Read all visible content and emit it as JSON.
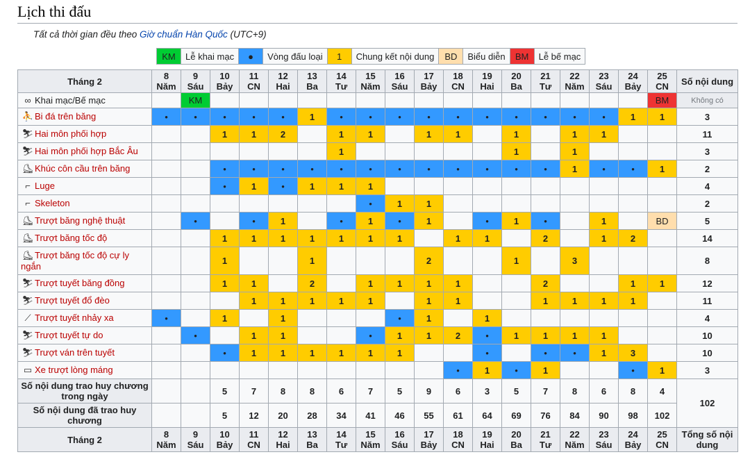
{
  "title": "Lịch thi đấu",
  "note": {
    "prefix": "Tất cả thời gian đều theo ",
    "link": "Giờ chuẩn Hàn Quốc",
    "suffix": " (UTC+9)"
  },
  "legend": [
    {
      "code": "KM",
      "label": "Lễ khai mạc",
      "color": "#00cc33"
    },
    {
      "code": "●",
      "label": "Vòng đấu loại",
      "color": "#3399ff"
    },
    {
      "code": "1",
      "label": "Chung kết nội dung",
      "color": "#ffcc00"
    },
    {
      "code": "BD",
      "label": "Biểu diễn",
      "color": "#ffdead"
    },
    {
      "code": "BM",
      "label": "Lễ bế mạc",
      "color": "#ee3333"
    }
  ],
  "header": {
    "month": "Tháng 2",
    "total": "Số nội dung",
    "footer_total": "Tổng số nội dung"
  },
  "days": [
    {
      "d": "8",
      "w": "Năm"
    },
    {
      "d": "9",
      "w": "Sáu"
    },
    {
      "d": "10",
      "w": "Bảy"
    },
    {
      "d": "11",
      "w": "CN"
    },
    {
      "d": "12",
      "w": "Hai"
    },
    {
      "d": "13",
      "w": "Ba"
    },
    {
      "d": "14",
      "w": "Tư"
    },
    {
      "d": "15",
      "w": "Năm"
    },
    {
      "d": "16",
      "w": "Sáu"
    },
    {
      "d": "17",
      "w": "Bảy"
    },
    {
      "d": "18",
      "w": "CN"
    },
    {
      "d": "19",
      "w": "Hai"
    },
    {
      "d": "20",
      "w": "Ba"
    },
    {
      "d": "21",
      "w": "Tư"
    },
    {
      "d": "22",
      "w": "Năm"
    },
    {
      "d": "23",
      "w": "Sáu"
    },
    {
      "d": "24",
      "w": "Bảy"
    },
    {
      "d": "25",
      "w": "CN"
    }
  ],
  "rows": [
    {
      "name": "Khai mạc/Bế mạc",
      "icon": "olympic-rings-icon",
      "glyph": "∞",
      "cells": [
        "",
        "KM",
        "",
        "",
        "",
        "",
        "",
        "",
        "",
        "",
        "",
        "",
        "",
        "",
        "",
        "",
        "",
        "BM"
      ],
      "total": "Không có"
    },
    {
      "name": "Bi đá trên băng",
      "icon": "curling-icon",
      "glyph": "⛹",
      "cells": [
        "•",
        "•",
        "•",
        "•",
        "•",
        "1",
        "•",
        "•",
        "•",
        "•",
        "•",
        "•",
        "•",
        "•",
        "•",
        "•",
        "1",
        "1"
      ],
      "total": "3"
    },
    {
      "name": "Hai môn phối hợp",
      "icon": "biathlon-icon",
      "glyph": "⛷",
      "cells": [
        "",
        "",
        "1",
        "1",
        "2",
        "",
        "1",
        "1",
        "",
        "1",
        "1",
        "",
        "1",
        "",
        "1",
        "1",
        "",
        ""
      ],
      "total": "11"
    },
    {
      "name": "Hai môn phối hợp Bắc Âu",
      "icon": "nordic-combined-icon",
      "glyph": "⛷",
      "cells": [
        "",
        "",
        "",
        "",
        "",
        "",
        "1",
        "",
        "",
        "",
        "",
        "",
        "1",
        "",
        "1",
        "",
        "",
        ""
      ],
      "total": "3"
    },
    {
      "name": "Khúc côn cầu trên băng",
      "icon": "ice-hockey-icon",
      "glyph": "⛸",
      "cells": [
        "",
        "",
        "•",
        "•",
        "•",
        "•",
        "•",
        "•",
        "•",
        "•",
        "•",
        "•",
        "•",
        "•",
        "1",
        "•",
        "•",
        "1"
      ],
      "total": "2"
    },
    {
      "name": "Luge",
      "icon": "luge-icon",
      "glyph": "⌐",
      "cells": [
        "",
        "",
        "•",
        "1",
        "•",
        "1",
        "1",
        "1",
        "",
        "",
        "",
        "",
        "",
        "",
        "",
        "",
        "",
        ""
      ],
      "total": "4"
    },
    {
      "name": "Skeleton",
      "icon": "skeleton-icon",
      "glyph": "⌐",
      "cells": [
        "",
        "",
        "",
        "",
        "",
        "",
        "",
        "•",
        "1",
        "1",
        "",
        "",
        "",
        "",
        "",
        "",
        "",
        ""
      ],
      "total": "2"
    },
    {
      "name": "Trượt băng nghệ thuật",
      "icon": "figure-skating-icon",
      "glyph": "⛸",
      "cells": [
        "",
        "•",
        "",
        "•",
        "1",
        "",
        "•",
        "1",
        "•",
        "1",
        "",
        "•",
        "1",
        "•",
        "",
        "1",
        "",
        "BD"
      ],
      "total": "5"
    },
    {
      "name": "Trượt băng tốc độ",
      "icon": "speed-skating-icon",
      "glyph": "⛸",
      "cells": [
        "",
        "",
        "1",
        "1",
        "1",
        "1",
        "1",
        "1",
        "1",
        "",
        "1",
        "1",
        "",
        "2",
        "",
        "1",
        "2",
        ""
      ],
      "total": "14"
    },
    {
      "name": "Trượt băng tốc độ cự ly ngắn",
      "icon": "short-track-icon",
      "glyph": "⛸",
      "cells": [
        "",
        "",
        "1",
        "",
        "",
        "1",
        "",
        "",
        "",
        "2",
        "",
        "",
        "1",
        "",
        "3",
        "",
        "",
        ""
      ],
      "total": "8"
    },
    {
      "name": "Trượt tuyết băng đồng",
      "icon": "cross-country-icon",
      "glyph": "⛷",
      "cells": [
        "",
        "",
        "1",
        "1",
        "",
        "2",
        "",
        "1",
        "1",
        "1",
        "1",
        "",
        "",
        "2",
        "",
        "",
        "1",
        "1"
      ],
      "total": "12"
    },
    {
      "name": "Trượt tuyết đổ đèo",
      "icon": "alpine-skiing-icon",
      "glyph": "⛷",
      "cells": [
        "",
        "",
        "",
        "1",
        "1",
        "1",
        "1",
        "1",
        "",
        "1",
        "1",
        "",
        "",
        "1",
        "1",
        "1",
        "1",
        ""
      ],
      "total": "11"
    },
    {
      "name": "Trượt tuyết nhảy xa",
      "icon": "ski-jumping-icon",
      "glyph": "⟋",
      "cells": [
        "•",
        "",
        "1",
        "",
        "1",
        "",
        "",
        "",
        "•",
        "1",
        "",
        "1",
        "",
        "",
        "",
        "",
        "",
        ""
      ],
      "total": "4"
    },
    {
      "name": "Trượt tuyết tự do",
      "icon": "freestyle-skiing-icon",
      "glyph": "⛷",
      "cells": [
        "",
        "•",
        "",
        "1",
        "1",
        "",
        "",
        "•",
        "1",
        "1",
        "2",
        "•",
        "1",
        "1",
        "1",
        "1",
        "",
        ""
      ],
      "total": "10"
    },
    {
      "name": "Trượt ván trên tuyết",
      "icon": "snowboard-icon",
      "glyph": "⛷",
      "cells": [
        "",
        "",
        "•",
        "1",
        "1",
        "1",
        "1",
        "1",
        "1",
        "",
        "",
        "•",
        "",
        "•",
        "•",
        "1",
        "3",
        ""
      ],
      "total": "10"
    },
    {
      "name": "Xe trượt lòng máng",
      "icon": "bobsleigh-icon",
      "glyph": "▭",
      "cells": [
        "",
        "",
        "",
        "",
        "",
        "",
        "",
        "",
        "",
        "",
        "•",
        "1",
        "•",
        "1",
        "",
        "",
        "•",
        "1"
      ],
      "total": "3"
    }
  ],
  "summary": {
    "daily_label": "Số nội dung trao huy chương trong ngày",
    "daily": [
      "",
      "",
      "5",
      "7",
      "8",
      "8",
      "6",
      "7",
      "5",
      "9",
      "6",
      "3",
      "5",
      "7",
      "8",
      "6",
      "8",
      "4"
    ],
    "cumulative_label": "Số nội dung đã trao huy chương",
    "cumulative": [
      "",
      "",
      "5",
      "12",
      "20",
      "28",
      "34",
      "41",
      "46",
      "55",
      "61",
      "64",
      "69",
      "76",
      "84",
      "90",
      "98",
      "102"
    ],
    "grand_total": "102"
  }
}
